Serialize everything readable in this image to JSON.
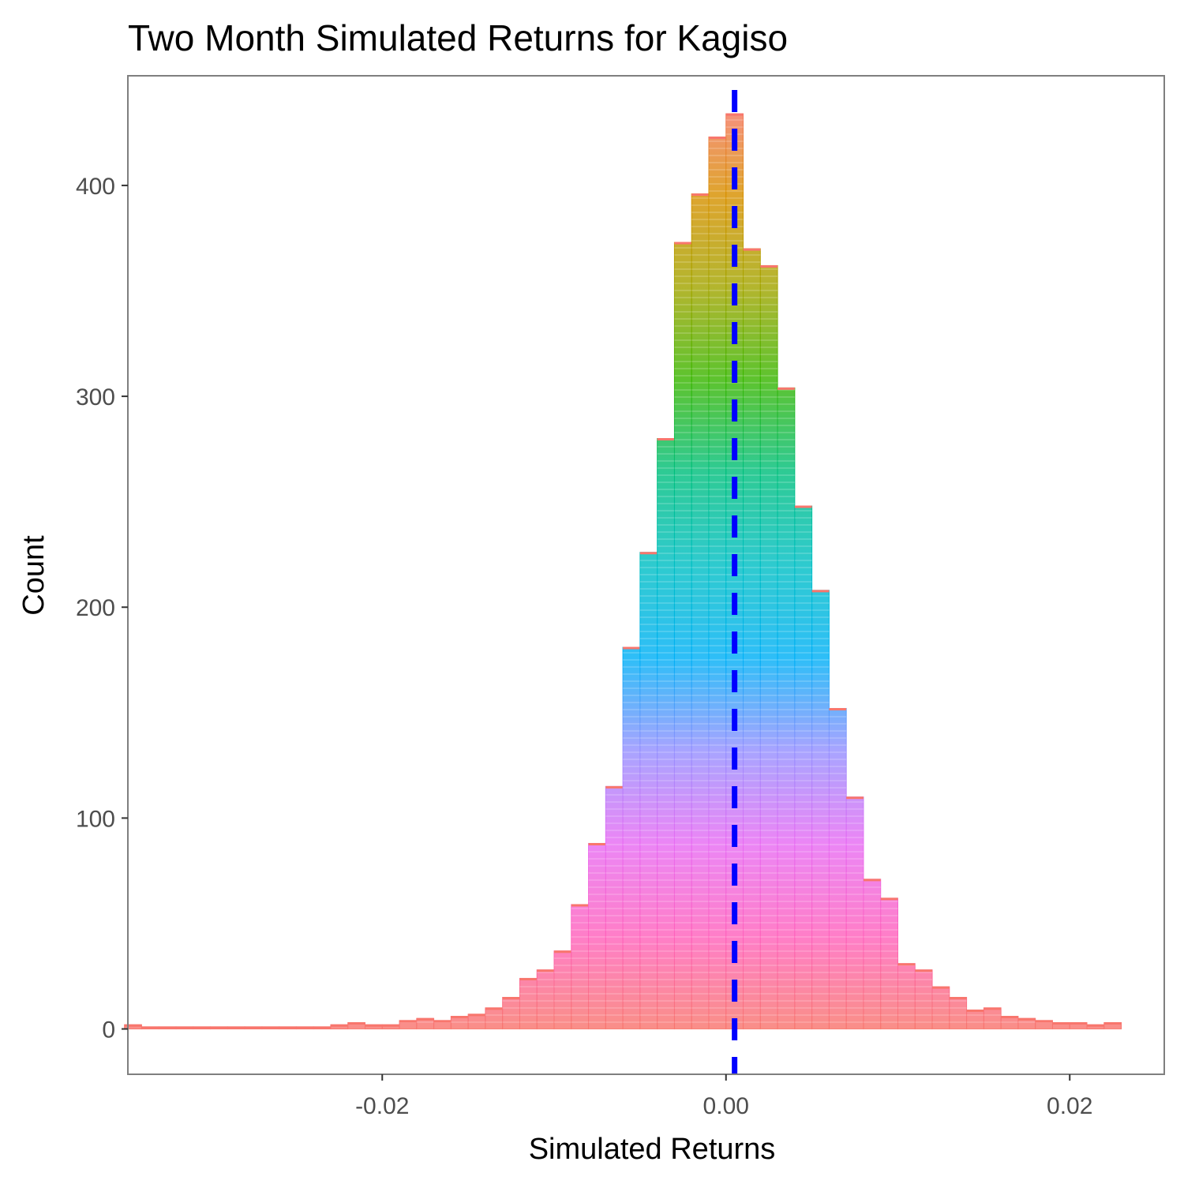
{
  "chart_data": {
    "type": "bar",
    "title": "Two Month Simulated Returns for Kagiso",
    "xlabel": "Simulated Returns",
    "ylabel": "Count",
    "xlim": [
      -0.0348,
      0.0255
    ],
    "ylim": [
      -21.5,
      452
    ],
    "x_ticks": [
      -0.02,
      0.0,
      0.02
    ],
    "x_tick_labels": [
      "-0.02",
      "0.00",
      "0.02"
    ],
    "y_ticks": [
      0,
      100,
      200,
      300,
      400
    ],
    "y_tick_labels": [
      "0",
      "100",
      "200",
      "300",
      "400"
    ],
    "grid": false,
    "legend": "none",
    "bin_width": 0.001,
    "bin_centers": [
      -0.0345,
      -0.0335,
      -0.0325,
      -0.0315,
      -0.0305,
      -0.0295,
      -0.0285,
      -0.0275,
      -0.0265,
      -0.0255,
      -0.0245,
      -0.0235,
      -0.0225,
      -0.0215,
      -0.0205,
      -0.0195,
      -0.0185,
      -0.0175,
      -0.0165,
      -0.0155,
      -0.0145,
      -0.0135,
      -0.0125,
      -0.0115,
      -0.0105,
      -0.0095,
      -0.0085,
      -0.0075,
      -0.0065,
      -0.0055,
      -0.0045,
      -0.0035,
      -0.0025,
      -0.0015,
      -0.0005,
      0.0005,
      0.0015,
      0.0025,
      0.0035,
      0.0045,
      0.0055,
      0.0065,
      0.0075,
      0.0085,
      0.0095,
      0.0105,
      0.0115,
      0.0125,
      0.0135,
      0.0145,
      0.0155,
      0.0165,
      0.0175,
      0.0185,
      0.0195,
      0.0205,
      0.0215,
      0.0225
    ],
    "counts": [
      2,
      1,
      1,
      1,
      1,
      1,
      1,
      1,
      1,
      1,
      1,
      1,
      2,
      3,
      2,
      2,
      4,
      5,
      4,
      6,
      7,
      10,
      15,
      24,
      28,
      37,
      59,
      88,
      115,
      181,
      226,
      280,
      373,
      396,
      423,
      434,
      370,
      362,
      304,
      248,
      208,
      152,
      110,
      71,
      62,
      31,
      28,
      20,
      15,
      9,
      10,
      6,
      5,
      4,
      3,
      3,
      2,
      3
    ],
    "fill_gradient_top_to_bottom": [
      "#F8766D",
      "#D89000",
      "#A3A500",
      "#39B600",
      "#00BF7D",
      "#00BFC4",
      "#00B0F6",
      "#9590FF",
      "#E76BF3",
      "#FF62BC",
      "#F8766D"
    ],
    "vline": {
      "x": 0.0005,
      "color": "#0000FF",
      "style": "dashed"
    },
    "background_color": "#FFFFFF",
    "panel_border_color": "#7F7F7F"
  }
}
